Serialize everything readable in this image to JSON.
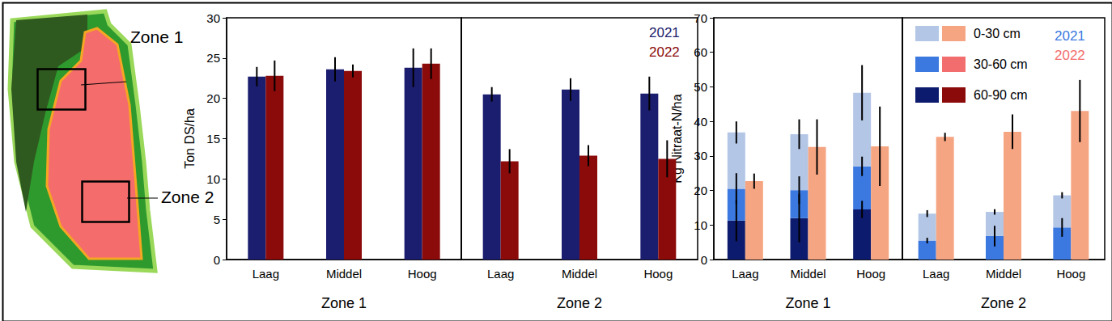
{
  "map": {
    "labels": [
      "Zone 1",
      "Zone 2"
    ]
  },
  "chart_data": [
    {
      "type": "bar",
      "ylabel": "Ton DS/ha",
      "ylim": [
        0,
        30
      ],
      "yticks": [
        0,
        5,
        10,
        15,
        20,
        25,
        30
      ],
      "grid": false,
      "legend": "upper right",
      "panels": [
        {
          "title": "Zone 1",
          "categories": [
            "Laag",
            "Middel",
            "Hoog"
          ],
          "series": [
            {
              "name": "2021",
              "color": "#1b1d6e",
              "values": [
                22.7,
                23.6,
                23.8
              ],
              "errors": [
                1.2,
                1.5,
                2.4
              ]
            },
            {
              "name": "2022",
              "color": "#8b0a0a",
              "values": [
                22.8,
                23.4,
                24.3
              ],
              "errors": [
                1.9,
                0.8,
                1.9
              ]
            }
          ]
        },
        {
          "title": "Zone 2",
          "categories": [
            "Laag",
            "Middel",
            "Hoog"
          ],
          "series": [
            {
              "name": "2021",
              "color": "#1b1d6e",
              "values": [
                20.5,
                21.1,
                20.6
              ],
              "errors": [
                0.9,
                1.4,
                2.1
              ]
            },
            {
              "name": "2022",
              "color": "#8b0a0a",
              "values": [
                12.2,
                12.9,
                12.5
              ],
              "errors": [
                1.5,
                1.3,
                2.3
              ]
            }
          ]
        }
      ]
    },
    {
      "type": "bar",
      "stacked": true,
      "ylabel": "Kg Nitraat-N/ha",
      "ylim": [
        0,
        70
      ],
      "yticks": [
        0,
        10,
        20,
        30,
        40,
        50,
        60,
        70
      ],
      "grid": false,
      "legend": "upper right",
      "panels": [
        {
          "title": "Zone 1",
          "categories": [
            "Laag",
            "Middel",
            "Hoog"
          ],
          "groups": [
            {
              "name": "2021",
              "series": [
                {
                  "name": "60-90 cm",
                  "color": "#0d1b6e",
                  "values": [
                    11.3,
                    12.0,
                    14.5
                  ],
                  "errors": [
                    6.0,
                    7.0,
                    2.5
                  ]
                },
                {
                  "name": "30-60 cm",
                  "color": "#3b78e0",
                  "values": [
                    9.2,
                    8.1,
                    12.5
                  ],
                  "errors": [
                    4.5,
                    4.0,
                    2.8
                  ]
                },
                {
                  "name": "0-30 cm",
                  "color": "#b3c6e6",
                  "values": [
                    16.3,
                    16.2,
                    21.3
                  ],
                  "errors": [
                    3.2,
                    4.3,
                    8.0
                  ]
                }
              ]
            },
            {
              "name": "2022",
              "series": [
                {
                  "name": "60-90 cm",
                  "color": "#8b0a0a",
                  "values": [
                    null,
                    null,
                    null
                  ],
                  "errors": [
                    null,
                    null,
                    null
                  ]
                },
                {
                  "name": "30-60 cm",
                  "color": "#f26d6d",
                  "values": [
                    null,
                    null,
                    null
                  ],
                  "errors": [
                    null,
                    null,
                    null
                  ]
                },
                {
                  "name": "0-30 cm",
                  "color": "#f6a582",
                  "values": [
                    22.7,
                    32.6,
                    32.8
                  ],
                  "errors": [
                    2.2,
                    8.0,
                    11.5
                  ]
                }
              ]
            }
          ]
        },
        {
          "title": "Zone 2",
          "categories": [
            "Laag",
            "Middel",
            "Hoog"
          ],
          "groups": [
            {
              "name": "2021",
              "series": [
                {
                  "name": "60-90 cm",
                  "color": "#0d1b6e",
                  "values": [
                    null,
                    null,
                    null
                  ],
                  "errors": [
                    null,
                    null,
                    null
                  ]
                },
                {
                  "name": "30-60 cm",
                  "color": "#3b78e0",
                  "values": [
                    5.5,
                    6.8,
                    9.3
                  ],
                  "errors": [
                    0.8,
                    3.0,
                    2.7
                  ]
                },
                {
                  "name": "0-30 cm",
                  "color": "#b3c6e6",
                  "values": [
                    7.8,
                    7.0,
                    9.3
                  ],
                  "errors": [
                    1.0,
                    0.8,
                    0.9
                  ]
                }
              ]
            },
            {
              "name": "2022",
              "series": [
                {
                  "name": "60-90 cm",
                  "color": "#8b0a0a",
                  "values": [
                    null,
                    null,
                    null
                  ],
                  "errors": [
                    null,
                    null,
                    null
                  ]
                },
                {
                  "name": "30-60 cm",
                  "color": "#f26d6d",
                  "values": [
                    null,
                    null,
                    null
                  ],
                  "errors": [
                    null,
                    null,
                    null
                  ]
                },
                {
                  "name": "0-30 cm",
                  "color": "#f6a582",
                  "values": [
                    35.5,
                    37.0,
                    43.0
                  ],
                  "errors": [
                    1.2,
                    5.0,
                    9.0
                  ]
                }
              ]
            }
          ]
        }
      ]
    }
  ]
}
